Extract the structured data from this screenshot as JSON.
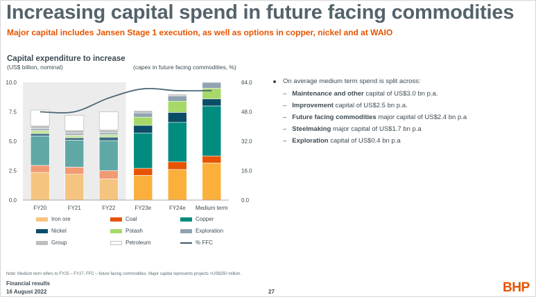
{
  "slide": {
    "title": "Increasing capital spend in future facing commodities",
    "subtitle": "Major capital includes Jansen Stage 1 execution, as well as options in copper, nickel and at WAIO",
    "note": "Note: Medium term refers to FY25 – FY27. FFC – future facing commodities. Major capital represents projects >US$250 million.",
    "footer_label": "Financial results",
    "footer_date": "16 August 2022",
    "page_number": "27",
    "logo": "BHP"
  },
  "bullets": {
    "lead": "On average medium term spend is split across:",
    "items": [
      {
        "bold": "Maintenance and other",
        "rest": " capital of US$3.0 bn p.a."
      },
      {
        "bold": "Improvement",
        "rest": " capital of US$2.5 bn p.a."
      },
      {
        "bold": "Future facing commodities",
        "rest": " major capital of US$2.4 bn p.a"
      },
      {
        "bold": "Steelmaking",
        "rest": " major capital of US$1.7 bn p.a"
      },
      {
        "bold": "Exploration",
        "rest": " capital of US$0.4 bn p.a"
      }
    ]
  },
  "chart_data": {
    "type": "bar",
    "stacked": true,
    "title": "Capital expenditure to increase",
    "ylabel_left": "(US$ billion, nominal)",
    "ylabel_right": "(capex in future facing commodities, %)",
    "categories": [
      "FY20",
      "FY21",
      "FY22",
      "FY23e",
      "FY24e",
      "Medium term"
    ],
    "ylim_left": [
      0,
      10
    ],
    "yticks_left": [
      "0.0",
      "2.5",
      "5.0",
      "7.5",
      "10.0"
    ],
    "ylim_right": [
      0,
      64
    ],
    "yticks_right": [
      "0.0",
      "16.0",
      "32.0",
      "48.0",
      "64.0"
    ],
    "shaded_categories": [
      "FY20",
      "FY21",
      "FY22"
    ],
    "colors": {
      "Iron ore": "#f5c47f",
      "Coal": "#f29a74",
      "Copper": "#5fa8a5",
      "Nickel": "#3e6d80",
      "Potash": "#c6e59a",
      "Exploration": "#a7b4bd",
      "Group": "#bfbfbf",
      "Petroleum": "#ffffff",
      "% FFC": "#4b6676"
    },
    "series": [
      {
        "name": "Iron ore",
        "values": [
          2.35,
          2.2,
          1.8,
          2.1,
          2.6,
          3.15
        ]
      },
      {
        "name": "Coal",
        "values": [
          0.6,
          0.6,
          0.7,
          0.6,
          0.65,
          0.6
        ]
      },
      {
        "name": "Copper",
        "values": [
          2.5,
          2.3,
          2.55,
          3.0,
          3.35,
          4.25
        ]
      },
      {
        "name": "Nickel",
        "values": [
          0.2,
          0.2,
          0.3,
          0.65,
          0.85,
          0.6
        ]
      },
      {
        "name": "Potash",
        "values": [
          0.25,
          0.2,
          0.2,
          0.7,
          0.95,
          0.9
        ]
      },
      {
        "name": "Exploration",
        "values": [
          0.2,
          0.2,
          0.2,
          0.35,
          0.45,
          0.5
        ]
      },
      {
        "name": "Group",
        "values": [
          0.2,
          0.2,
          0.2,
          0.2,
          0.15,
          0.05
        ]
      },
      {
        "name": "Petroleum",
        "values": [
          1.35,
          1.3,
          1.55,
          0.0,
          0.0,
          0.0
        ]
      }
    ],
    "line_series": {
      "name": "% FFC",
      "axis": "right",
      "values": [
        48.0,
        48.0,
        55.5,
        60.5,
        59.5,
        59.5
      ]
    },
    "legend": [
      "Iron ore",
      "Coal",
      "Copper",
      "Nickel",
      "Potash",
      "Exploration",
      "Group",
      "Petroleum",
      "% FFC"
    ]
  }
}
